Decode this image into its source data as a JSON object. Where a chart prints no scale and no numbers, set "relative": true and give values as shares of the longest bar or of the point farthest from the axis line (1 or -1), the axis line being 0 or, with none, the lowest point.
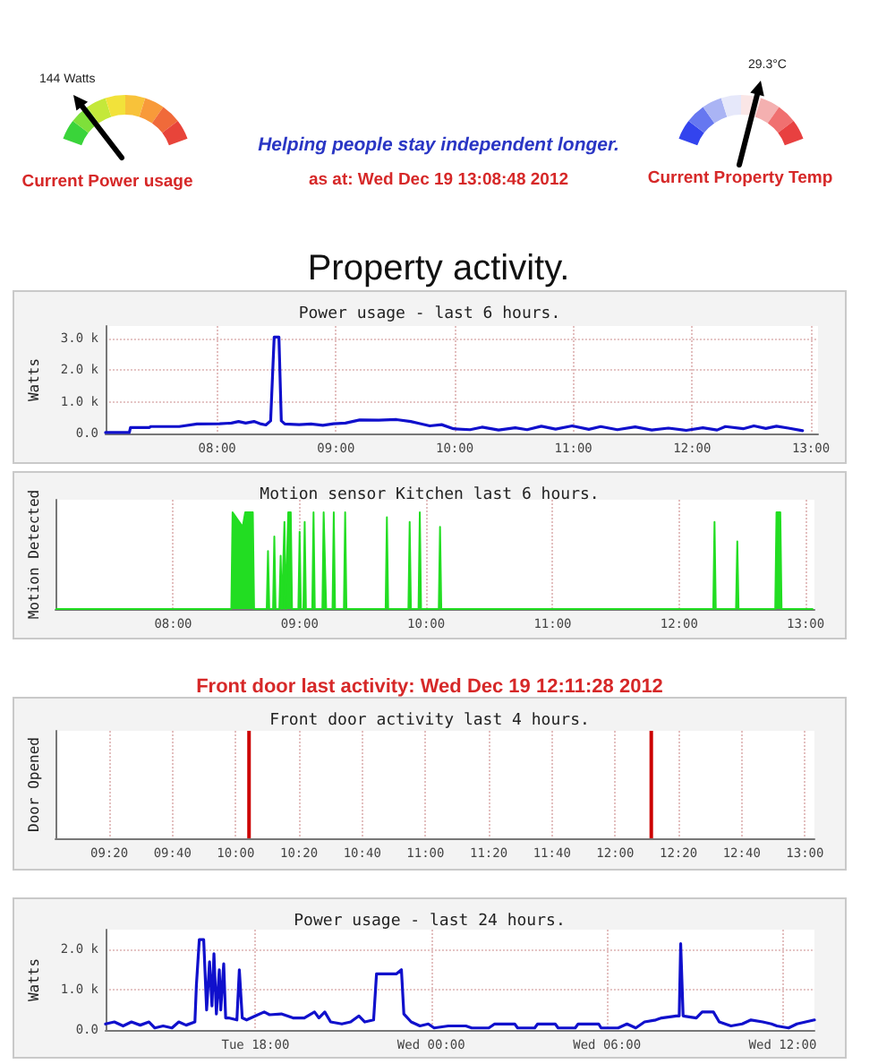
{
  "chart_data": [
    {
      "type": "other",
      "title": "Current Power usage",
      "annotations": [
        "144 Watts"
      ]
    },
    {
      "type": "other",
      "subtitle": "Helping people stay independent longer.",
      "annotations": [
        "as at: Wed Dec 19 13:08:48 2012",
        "Property activity."
      ]
    },
    {
      "type": "other",
      "title": "Current Property Temp",
      "annotations": [
        "29.3°C"
      ]
    },
    {
      "type": "line",
      "title": "Power usage - last 6 hours.",
      "ylabel": "Watts",
      "color": "#1010cc",
      "x": [
        7.06,
        7.26,
        7.27,
        7.43,
        7.44,
        7.68,
        7.83,
        8.02,
        8.12,
        8.18,
        8.24,
        8.31,
        8.37,
        8.41,
        8.45,
        8.48,
        8.52,
        8.54,
        8.57,
        8.69,
        8.79,
        8.89,
        8.98,
        9.08,
        9.2,
        9.36,
        9.51,
        9.63,
        9.7,
        9.79,
        9.89,
        9.99,
        10.13,
        10.23,
        10.37,
        10.51,
        10.61,
        10.73,
        10.85,
        10.99,
        11.13,
        11.23,
        11.37,
        11.52,
        11.66,
        11.8,
        11.95,
        12.09,
        12.21,
        12.28,
        12.43,
        12.52,
        12.62,
        12.71,
        12.81,
        12.93
      ],
      "values": [
        30,
        30,
        190,
        190,
        220,
        220,
        300,
        310,
        330,
        380,
        330,
        380,
        300,
        270,
        400,
        3050,
        3050,
        400,
        300,
        280,
        300,
        260,
        310,
        330,
        430,
        420,
        440,
        380,
        320,
        240,
        280,
        150,
        120,
        200,
        110,
        180,
        120,
        230,
        140,
        240,
        130,
        220,
        120,
        210,
        110,
        170,
        100,
        180,
        110,
        220,
        150,
        240,
        160,
        230,
        170,
        90
      ],
      "xlim": [
        7.06,
        13.06
      ],
      "xticks": [
        {
          "value": 8,
          "label": "08:00"
        },
        {
          "value": 9,
          "label": "09:00"
        },
        {
          "value": 10,
          "label": "10:00"
        },
        {
          "value": 11,
          "label": "11:00"
        },
        {
          "value": 12,
          "label": "12:00"
        },
        {
          "value": 13,
          "label": "13:00"
        }
      ],
      "ylim": [
        0,
        3400
      ],
      "yticks": [
        {
          "value": 0,
          "label": "0.0"
        },
        {
          "value": 1000,
          "label": "1.0 k"
        },
        {
          "value": 2000,
          "label": "2.0 k"
        },
        {
          "value": 3000,
          "label": "3.0 k"
        }
      ],
      "grid": true
    },
    {
      "type": "area",
      "title": "Motion sensor Kitchen last 6 hours.",
      "ylabel": "Motion Detected",
      "relative": true,
      "color": "#22dd22",
      "x": [
        7.07,
        8.46,
        8.47,
        8.55,
        8.57,
        8.63,
        8.64,
        8.74,
        8.75,
        8.76,
        8.79,
        8.8,
        8.81,
        8.84,
        8.85,
        8.86,
        8.87,
        8.88,
        8.89,
        8.9,
        8.91,
        8.93,
        8.94,
        8.99,
        9.0,
        9.01,
        9.03,
        9.04,
        9.05,
        9.1,
        9.11,
        9.12,
        9.18,
        9.19,
        9.2,
        9.21,
        9.26,
        9.27,
        9.28,
        9.35,
        9.36,
        9.37,
        9.68,
        9.69,
        9.7,
        9.86,
        9.87,
        9.88,
        9.94,
        9.95,
        9.96,
        10.1,
        10.11,
        10.12,
        12.27,
        12.28,
        12.29,
        12.45,
        12.46,
        12.47,
        12.76,
        12.77,
        12.8,
        12.81,
        13.06
      ],
      "values": [
        0,
        0,
        1,
        0.85,
        1,
        1,
        0,
        0,
        0.6,
        0,
        0,
        0.75,
        0,
        0,
        0.55,
        0,
        0,
        0.9,
        0,
        0,
        1,
        1,
        0,
        0,
        0.8,
        0,
        0,
        0.9,
        0,
        0,
        1,
        0,
        0,
        1,
        1,
        0,
        0,
        1,
        0,
        0,
        1,
        0,
        0,
        0.95,
        0,
        0,
        0.9,
        0,
        0,
        1,
        0,
        0,
        0.85,
        0,
        0,
        0.9,
        0,
        0,
        0.7,
        0,
        0,
        1,
        1,
        0,
        0
      ],
      "xlim": [
        7.07,
        13.07
      ],
      "xticks": [
        {
          "value": 8,
          "label": "08:00"
        },
        {
          "value": 9,
          "label": "09:00"
        },
        {
          "value": 10,
          "label": "10:00"
        },
        {
          "value": 11,
          "label": "11:00"
        },
        {
          "value": 12,
          "label": "12:00"
        },
        {
          "value": 13,
          "label": "13:00"
        }
      ],
      "grid": "x"
    },
    {
      "type": "bar",
      "title": "Front door activity last 4 hours.",
      "ylabel": "Door Opened",
      "annotations": [
        "Front door last activity: Wed Dec 19 12:11:28 2012"
      ],
      "relative": true,
      "color": "#cc0000",
      "x": [
        10.07,
        12.19
      ],
      "values": [
        1,
        1
      ],
      "xlim": [
        9.05,
        13.05
      ],
      "xticks": [
        {
          "value": 9.3333,
          "label": "09:20"
        },
        {
          "value": 9.6667,
          "label": "09:40"
        },
        {
          "value": 10,
          "label": "10:00"
        },
        {
          "value": 10.3333,
          "label": "10:20"
        },
        {
          "value": 10.6667,
          "label": "10:40"
        },
        {
          "value": 11,
          "label": "11:00"
        },
        {
          "value": 11.3333,
          "label": "11:20"
        },
        {
          "value": 11.6667,
          "label": "11:40"
        },
        {
          "value": 12,
          "label": "12:00"
        },
        {
          "value": 12.3333,
          "label": "12:20"
        },
        {
          "value": 12.6667,
          "label": "12:40"
        },
        {
          "value": 13,
          "label": "13:00"
        }
      ],
      "grid": "x"
    },
    {
      "type": "line",
      "title": "Power usage - last 24 hours.",
      "ylabel": "Watts",
      "color": "#1010cc",
      "x": [
        "2012-12-18T12:53",
        "2012-12-18T13:11",
        "2012-12-18T13:29",
        "2012-12-18T13:46",
        "2012-12-18T14:04",
        "2012-12-18T14:22",
        "2012-12-18T14:34",
        "2012-12-18T14:51",
        "2012-12-18T15:09",
        "2012-12-18T15:23",
        "2012-12-18T15:38",
        "2012-12-18T15:56",
        "2012-12-18T15:59",
        "2012-12-18T16:05",
        "2012-12-18T16:14",
        "2012-12-18T16:20",
        "2012-12-18T16:26",
        "2012-12-18T16:31",
        "2012-12-18T16:35",
        "2012-12-18T16:40",
        "2012-12-18T16:46",
        "2012-12-18T16:49",
        "2012-12-18T16:55",
        "2012-12-18T16:59",
        "2012-12-18T17:05",
        "2012-12-18T17:22",
        "2012-12-18T17:27",
        "2012-12-18T17:33",
        "2012-12-18T17:42",
        "2012-12-18T18:00",
        "2012-12-18T18:18",
        "2012-12-18T18:29",
        "2012-12-18T18:53",
        "2012-12-18T19:17",
        "2012-12-18T19:40",
        "2012-12-18T20:01",
        "2012-12-18T20:10",
        "2012-12-18T20:22",
        "2012-12-18T20:34",
        "2012-12-18T20:57",
        "2012-12-18T21:15",
        "2012-12-18T21:32",
        "2012-12-18T21:44",
        "2012-12-18T22:02",
        "2012-12-18T22:08",
        "2012-12-18T22:49",
        "2012-12-18T22:59",
        "2012-12-18T23:04",
        "2012-12-18T23:19",
        "2012-12-18T23:37",
        "2012-12-18T23:54",
        "2012-12-19T00:06",
        "2012-12-19T00:35",
        "2012-12-19T01:11",
        "2012-12-19T01:23",
        "2012-12-19T01:58",
        "2012-12-19T02:10",
        "2012-12-19T02:51",
        "2012-12-19T02:57",
        "2012-12-19T03:32",
        "2012-12-19T03:38",
        "2012-12-19T04:14",
        "2012-12-19T04:20",
        "2012-12-19T04:55",
        "2012-12-19T05:01",
        "2012-12-19T05:43",
        "2012-12-19T05:48",
        "2012-12-19T06:23",
        "2012-12-19T06:41",
        "2012-12-19T06:59",
        "2012-12-19T07:17",
        "2012-12-19T07:40",
        "2012-12-19T07:52",
        "2012-12-19T08:22",
        "2012-12-19T08:28",
        "2012-12-19T08:31",
        "2012-12-19T08:36",
        "2012-12-19T09:03",
        "2012-12-19T09:15",
        "2012-12-19T09:38",
        "2012-12-19T09:50",
        "2012-12-19T10:14",
        "2012-12-19T10:37",
        "2012-12-19T10:55",
        "2012-12-19T11:19",
        "2012-12-19T11:37",
        "2012-12-19T11:48",
        "2012-12-19T12:12",
        "2012-12-19T12:29",
        "2012-12-19T12:47",
        "2012-12-19T13:05"
      ],
      "values": [
        150,
        200,
        100,
        200,
        120,
        200,
        50,
        100,
        50,
        200,
        120,
        200,
        1100,
        2250,
        2250,
        500,
        1700,
        600,
        1900,
        400,
        1500,
        500,
        1650,
        300,
        300,
        250,
        1500,
        300,
        250,
        350,
        450,
        380,
        400,
        300,
        300,
        450,
        300,
        450,
        200,
        150,
        200,
        350,
        200,
        250,
        1400,
        1400,
        1500,
        400,
        200,
        100,
        150,
        50,
        100,
        100,
        50,
        50,
        150,
        150,
        50,
        50,
        150,
        150,
        50,
        50,
        150,
        150,
        50,
        50,
        150,
        50,
        200,
        250,
        300,
        350,
        350,
        2150,
        350,
        300,
        450,
        450,
        200,
        100,
        150,
        250,
        200,
        150,
        100,
        50,
        150,
        200,
        250
      ],
      "xlim": [
        "2012-12-18T12:53",
        "2012-12-19T13:05"
      ],
      "xticks": [
        {
          "value": "2012-12-18T18:00",
          "label": "Tue 18:00"
        },
        {
          "value": "2012-12-19T00:00",
          "label": "Wed 00:00"
        },
        {
          "value": "2012-12-19T06:00",
          "label": "Wed 06:00"
        },
        {
          "value": "2012-12-19T12:00",
          "label": "Wed 12:00"
        }
      ],
      "ylim": [
        0,
        2500
      ],
      "yticks": [
        {
          "value": 0,
          "label": "0.0"
        },
        {
          "value": 1000,
          "label": "1.0 k"
        },
        {
          "value": 2000,
          "label": "2.0 k"
        }
      ],
      "grid": true
    }
  ]
}
